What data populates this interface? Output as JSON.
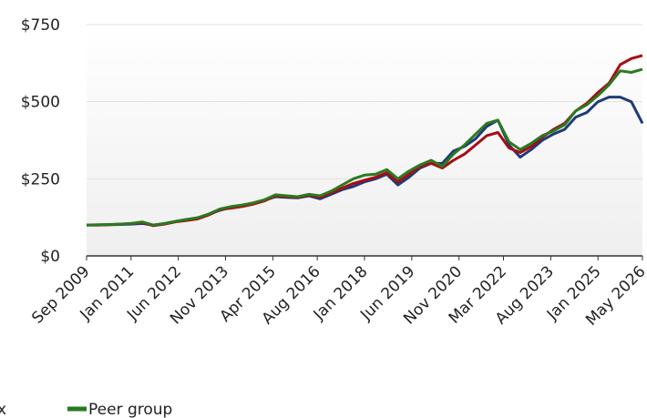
{
  "chart_data": {
    "type": "line",
    "x": [
      "2009-09",
      "2010-01",
      "2010-05",
      "2010-09",
      "2011-01",
      "2011-05",
      "2011-09",
      "2012-01",
      "2012-05",
      "2012-09",
      "2013-01",
      "2013-05",
      "2013-09",
      "2014-01",
      "2014-05",
      "2014-09",
      "2015-01",
      "2015-05",
      "2015-09",
      "2016-01",
      "2016-05",
      "2016-09",
      "2017-01",
      "2017-05",
      "2017-09",
      "2018-01",
      "2018-05",
      "2018-09",
      "2019-01",
      "2019-05",
      "2019-09",
      "2020-01",
      "2020-05",
      "2020-09",
      "2021-01",
      "2021-05",
      "2021-09",
      "2022-01",
      "2022-05",
      "2022-09",
      "2023-01",
      "2023-05",
      "2023-09",
      "2024-01",
      "2024-05",
      "2024-09",
      "2025-01",
      "2025-05",
      "2025-09",
      "2026-01",
      "2026-05"
    ],
    "series": [
      {
        "name": "x",
        "color": "#1f3a7a",
        "values": [
          100,
          100,
          101,
          102,
          103,
          105,
          100,
          104,
          112,
          118,
          122,
          135,
          148,
          158,
          163,
          170,
          180,
          192,
          190,
          188,
          195,
          185,
          200,
          215,
          225,
          240,
          250,
          265,
          230,
          255,
          285,
          300,
          300,
          340,
          355,
          380,
          420,
          440,
          360,
          320,
          345,
          375,
          395,
          410,
          450,
          465,
          500,
          515,
          515,
          500,
          430
        ]
      },
      {
        "color": "#a80c14",
        "values": [
          100,
          100,
          101,
          103,
          105,
          108,
          98,
          103,
          110,
          115,
          120,
          133,
          150,
          155,
          160,
          168,
          178,
          195,
          192,
          190,
          198,
          190,
          205,
          220,
          235,
          245,
          255,
          270,
          240,
          265,
          290,
          300,
          285,
          310,
          330,
          360,
          390,
          400,
          350,
          335,
          355,
          385,
          410,
          430,
          470,
          495,
          530,
          560,
          620,
          640,
          650
        ]
      },
      {
        "name": "Peer group",
        "color": "#2a7a1f",
        "values": [
          100,
          101,
          102,
          103,
          105,
          110,
          100,
          105,
          112,
          118,
          124,
          136,
          152,
          160,
          165,
          172,
          182,
          198,
          195,
          192,
          200,
          195,
          210,
          230,
          250,
          262,
          265,
          280,
          250,
          275,
          295,
          310,
          290,
          330,
          360,
          395,
          430,
          440,
          370,
          345,
          365,
          390,
          405,
          425,
          470,
          490,
          520,
          555,
          600,
          595,
          605
        ]
      }
    ],
    "xlim": [
      "2009-09",
      "2026-05"
    ],
    "xticks": [
      {
        "value": "2009-09",
        "label": "Sep 2009"
      },
      {
        "value": "2011-01",
        "label": "Jan 2011"
      },
      {
        "value": "2012-06",
        "label": "Jun 2012"
      },
      {
        "value": "2013-11",
        "label": "Nov 2013"
      },
      {
        "value": "2015-04",
        "label": "Apr 2015"
      },
      {
        "value": "2016-08",
        "label": "Aug 2016"
      },
      {
        "value": "2018-01",
        "label": "Jan 2018"
      },
      {
        "value": "2019-06",
        "label": "Jun 2019"
      },
      {
        "value": "2020-11",
        "label": "Nov 2020"
      },
      {
        "value": "2022-03",
        "label": "Mar 2022"
      },
      {
        "value": "2023-08",
        "label": "Aug 2023"
      },
      {
        "value": "2025-01",
        "label": "Jan 2025"
      },
      {
        "value": "2026-05",
        "label": "May 2026"
      }
    ],
    "ylim": [
      0,
      750
    ],
    "yticks": [
      {
        "value": 0,
        "label": "$0"
      },
      {
        "value": 250,
        "label": "$250"
      },
      {
        "value": 500,
        "label": "$500"
      },
      {
        "value": 750,
        "label": "$750"
      }
    ],
    "grid": true,
    "legend": "bottom"
  }
}
